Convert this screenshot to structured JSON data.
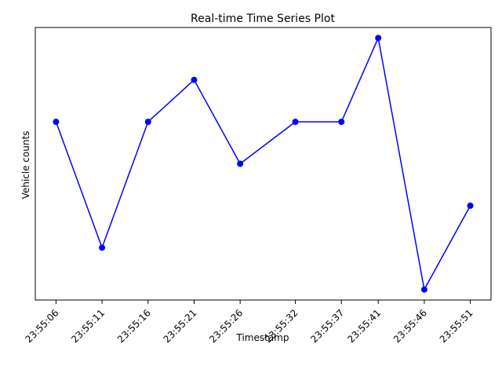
{
  "chart_data": {
    "type": "line",
    "title": "Real-time Time Series Plot",
    "xlabel": "Timestamp",
    "ylabel": "Vehicle counts",
    "categories": [
      "23:55:06",
      "23:55:11",
      "23:55:16",
      "23:55:21",
      "23:55:26",
      "23:55:32",
      "23:55:37",
      "23:55:41",
      "23:55:46",
      "23:55:51"
    ],
    "x_seconds": [
      6,
      11,
      16,
      21,
      26,
      32,
      37,
      41,
      46,
      51
    ],
    "values": [
      4,
      1,
      4,
      5,
      3,
      4,
      4,
      6,
      0,
      2
    ],
    "ylim": [
      -0.25,
      6.25
    ],
    "y_ticks_shown": false,
    "grid": false,
    "legend": "none",
    "colors": {
      "line": "#0000ff",
      "marker": "#0000ff",
      "axis": "#000000"
    },
    "x_tick_rotation_deg": -45
  }
}
